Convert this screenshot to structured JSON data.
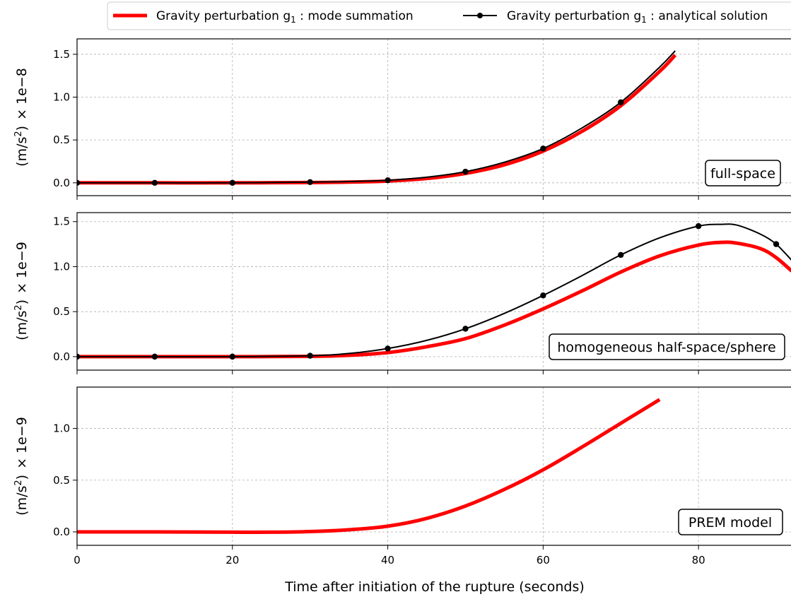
{
  "chart_data": [
    {
      "type": "line",
      "panel_label": "full-space",
      "ylabel": "(m/s²) × 1e−8",
      "ylabel_parts": {
        "unit": "(m/s",
        "exp": "2",
        "close": ")",
        "scale": "× 1e−8"
      },
      "xlim": [
        0,
        92
      ],
      "ylim": [
        -0.15,
        1.68
      ],
      "yticks": [
        0.0,
        0.5,
        1.0,
        1.5
      ],
      "ytick_labels": [
        "0.0",
        "0.5",
        "1.0",
        "1.5"
      ],
      "grid": true,
      "series": [
        {
          "name": "mode summation",
          "color": "#ff0000",
          "x": [
            0,
            10,
            20,
            30,
            35,
            40,
            45,
            50,
            55,
            60,
            65,
            70,
            75,
            77
          ],
          "y": [
            0,
            0,
            0,
            0.003,
            0.008,
            0.02,
            0.05,
            0.11,
            0.21,
            0.37,
            0.6,
            0.9,
            1.3,
            1.49
          ]
        },
        {
          "name": "analytical solution",
          "color": "#000000",
          "x": [
            0,
            10,
            20,
            30,
            35,
            40,
            45,
            50,
            55,
            60,
            65,
            70,
            75,
            77
          ],
          "y": [
            0,
            0,
            0,
            0.008,
            0.015,
            0.03,
            0.065,
            0.13,
            0.24,
            0.4,
            0.64,
            0.94,
            1.35,
            1.54
          ],
          "markers_x": [
            0,
            10,
            20,
            30,
            40,
            50,
            60,
            70
          ],
          "markers_y": [
            0,
            0,
            0,
            0.008,
            0.03,
            0.13,
            0.4,
            0.94
          ]
        }
      ]
    },
    {
      "type": "line",
      "panel_label": "homogeneous half-space/sphere",
      "ylabel": "(m/s²) × 1e−9",
      "ylabel_parts": {
        "unit": "(m/s",
        "exp": "2",
        "close": ")",
        "scale": "× 1e−9"
      },
      "xlim": [
        0,
        92
      ],
      "ylim": [
        -0.15,
        1.6
      ],
      "yticks": [
        0.0,
        0.5,
        1.0,
        1.5
      ],
      "ytick_labels": [
        "0.0",
        "0.5",
        "1.0",
        "1.5"
      ],
      "grid": true,
      "series": [
        {
          "name": "mode summation",
          "color": "#ff0000",
          "x": [
            0,
            10,
            20,
            30,
            35,
            40,
            45,
            50,
            55,
            60,
            65,
            70,
            75,
            80,
            83,
            85,
            88,
            90,
            92
          ],
          "y": [
            0,
            0,
            0,
            0.003,
            0.015,
            0.045,
            0.11,
            0.2,
            0.35,
            0.53,
            0.73,
            0.94,
            1.12,
            1.24,
            1.27,
            1.26,
            1.2,
            1.1,
            0.95
          ]
        },
        {
          "name": "analytical solution",
          "color": "#000000",
          "x": [
            0,
            10,
            20,
            30,
            35,
            40,
            45,
            50,
            55,
            60,
            65,
            70,
            75,
            80,
            83,
            85,
            88,
            90,
            92
          ],
          "y": [
            0,
            0,
            0,
            0.01,
            0.035,
            0.09,
            0.18,
            0.31,
            0.48,
            0.68,
            0.9,
            1.13,
            1.32,
            1.45,
            1.47,
            1.46,
            1.36,
            1.25,
            1.07
          ],
          "markers_x": [
            0,
            10,
            20,
            30,
            40,
            50,
            60,
            70,
            80,
            90
          ],
          "markers_y": [
            0,
            0,
            0,
            0.01,
            0.09,
            0.31,
            0.68,
            1.13,
            1.45,
            1.25
          ]
        }
      ]
    },
    {
      "type": "line",
      "panel_label": "PREM model",
      "ylabel": "(m/s²) × 1e−9",
      "ylabel_parts": {
        "unit": "(m/s",
        "exp": "2",
        "close": ")",
        "scale": "× 1e−9"
      },
      "xlabel": "Time after initiation of the rupture (seconds)",
      "xlim": [
        0,
        92
      ],
      "xticks": [
        0,
        20,
        40,
        60,
        80
      ],
      "xtick_labels": [
        "0",
        "20",
        "40",
        "60",
        "80"
      ],
      "ylim": [
        -0.13,
        1.4
      ],
      "yticks": [
        0.0,
        0.5,
        1.0
      ],
      "ytick_labels": [
        "0.0",
        "0.5",
        "1.0"
      ],
      "grid": true,
      "series": [
        {
          "name": "mode summation",
          "color": "#ff0000",
          "x": [
            0,
            10,
            20,
            25,
            30,
            35,
            40,
            45,
            50,
            55,
            60,
            65,
            70,
            75
          ],
          "y": [
            0,
            0,
            -0.003,
            -0.003,
            0.003,
            0.02,
            0.055,
            0.13,
            0.25,
            0.41,
            0.6,
            0.82,
            1.05,
            1.28
          ]
        }
      ]
    }
  ],
  "legend": {
    "placement": "top",
    "entries": [
      {
        "prefix": "Gravity perturbation g",
        "sub": "1",
        "suffix": " : mode summation",
        "color": "#ff0000",
        "style": "thick-line"
      },
      {
        "prefix": "Gravity perturbation g",
        "sub": "1",
        "suffix": " : analytical solution",
        "color": "#000000",
        "style": "line-marker"
      }
    ]
  }
}
